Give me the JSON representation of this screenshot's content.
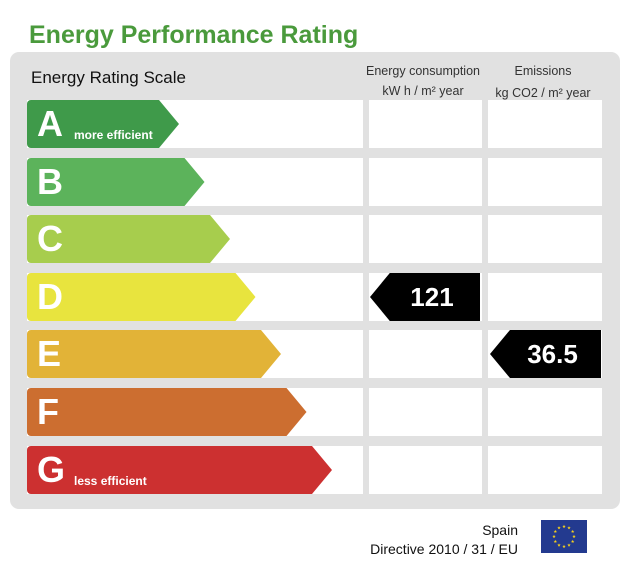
{
  "title": "Energy Performance Rating",
  "scale_label": "Energy Rating Scale",
  "columns": {
    "consumption": {
      "line1": "Energy consumption",
      "line2": "kW h / m² year"
    },
    "emissions": {
      "line1": "Emissions",
      "line2": "kg CO2 / m² year"
    }
  },
  "bands": [
    {
      "letter": "A",
      "note": "more efficient",
      "color": "#3f9a4a"
    },
    {
      "letter": "B",
      "note": "",
      "color": "#5cb35b"
    },
    {
      "letter": "C",
      "note": "",
      "color": "#a7cd4d"
    },
    {
      "letter": "D",
      "note": "",
      "color": "#e8e43e"
    },
    {
      "letter": "E",
      "note": "",
      "color": "#e2b337"
    },
    {
      "letter": "F",
      "note": "",
      "color": "#cc6e30"
    },
    {
      "letter": "G",
      "note": "less efficient",
      "color": "#cc3030"
    }
  ],
  "ratings": {
    "consumption": {
      "value": "121",
      "band": "D"
    },
    "emissions": {
      "value": "36.5",
      "band": "E"
    }
  },
  "footer": {
    "country": "Spain",
    "directive": "Directive 2010 / 31 / EU"
  },
  "flag": {
    "name": "eu-flag-icon",
    "background": "#233a8f",
    "star_color": "#f7d11c"
  }
}
